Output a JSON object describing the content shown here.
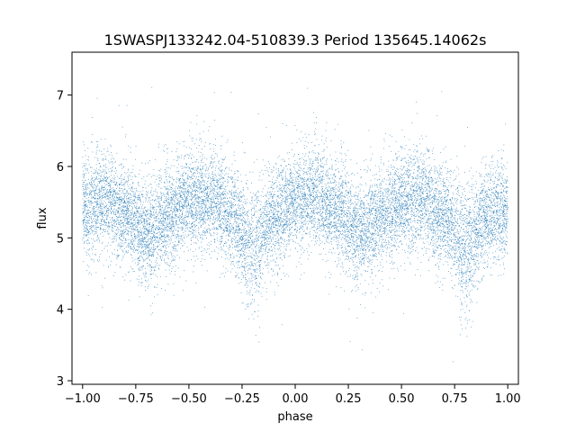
{
  "chart_data": {
    "type": "scatter",
    "title": "1SWASPJ133242.04-510839.3 Period 135645.14062s",
    "xlabel": "phase",
    "ylabel": "flux",
    "xlim": [
      -1.05,
      1.05
    ],
    "ylim": [
      2.95,
      7.6
    ],
    "grid": false,
    "legend": "none",
    "series_color": "#1f77b4",
    "x_ticks": [
      -1.0,
      -0.75,
      -0.5,
      -0.25,
      0.0,
      0.25,
      0.5,
      0.75,
      1.0
    ],
    "x_tick_labels": [
      "−1.00",
      "−0.75",
      "−0.50",
      "−0.25",
      "0.00",
      "0.25",
      "0.50",
      "0.75",
      "1.00"
    ],
    "y_ticks": [
      3,
      4,
      5,
      6,
      7
    ],
    "y_tick_labels": [
      "3",
      "4",
      "5",
      "6",
      "7"
    ],
    "light_curve": {
      "phase": [
        -1.0,
        -0.9,
        -0.8,
        -0.7,
        -0.6,
        -0.5,
        -0.4,
        -0.3,
        -0.2,
        -0.1,
        0.0,
        0.1,
        0.2,
        0.3,
        0.4,
        0.5,
        0.6,
        0.7,
        0.8,
        0.9,
        1.0
      ],
      "mean_flux": [
        5.4,
        5.55,
        5.35,
        5.05,
        5.3,
        5.5,
        5.55,
        5.3,
        4.85,
        5.3,
        5.5,
        5.6,
        5.4,
        5.05,
        5.3,
        5.5,
        5.55,
        5.3,
        4.85,
        5.3,
        5.4
      ],
      "scatter_sigma": 0.35,
      "points": 14000,
      "min_flux": 3.15,
      "max_flux": 7.4
    }
  }
}
